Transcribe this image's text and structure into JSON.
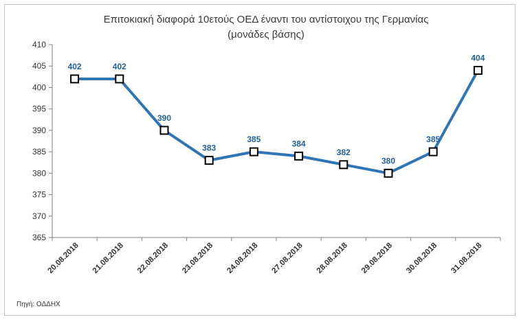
{
  "chart_data": {
    "type": "line",
    "title_line1": "Επιτοκιακή διαφορά 10ετούς ΟΕΔ έναντι του αντίστοιχου της Γερμανίας",
    "title_line2": "(μονάδες βάσης)",
    "categories": [
      "20.08.2018",
      "21.08.2018",
      "22.08.2018",
      "23.08.2018",
      "24.08.2018",
      "27.08.2018",
      "28.08.2018",
      "29.08.2018",
      "30.08.2018",
      "31.08.2018"
    ],
    "values": [
      402,
      402,
      390,
      383,
      385,
      384,
      382,
      380,
      385,
      404
    ],
    "ylim": [
      365,
      410
    ],
    "yticks": [
      365,
      370,
      375,
      380,
      385,
      390,
      395,
      400,
      405,
      410
    ],
    "grid": false,
    "line_color": "#2e75b6",
    "label_color": "#1f5f9a",
    "marker": "square-white-black-border",
    "source": "Πηγή: ΟΔΔΗΧ"
  }
}
